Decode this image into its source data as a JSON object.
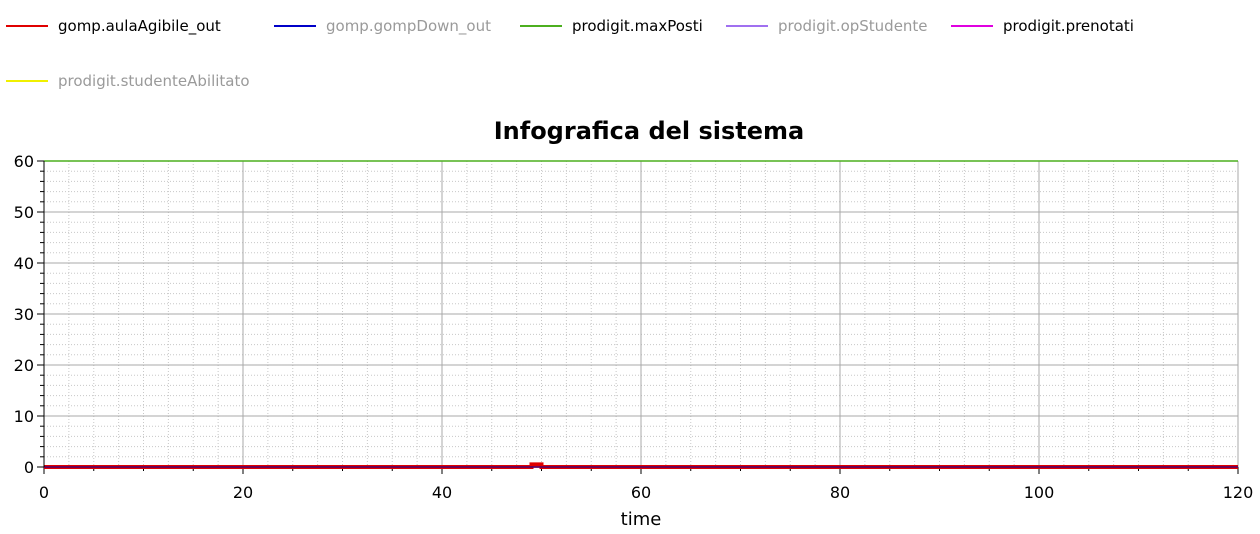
{
  "chart_data": {
    "type": "line",
    "title": "Infografica del sistema",
    "xlabel": "time",
    "ylabel": "",
    "xlim": [
      0,
      120
    ],
    "ylim": [
      0,
      60
    ],
    "x_ticks": [
      0,
      20,
      40,
      60,
      80,
      100,
      120
    ],
    "y_ticks": [
      0,
      10,
      20,
      30,
      40,
      50,
      60
    ],
    "grid": true,
    "legend_placement": "top",
    "series": [
      {
        "name": "gomp.aulaAgibile_out",
        "color": "#e00000",
        "visible": true,
        "points": [
          [
            0,
            0
          ],
          [
            49,
            0
          ],
          [
            49,
            0.5
          ],
          [
            50,
            0.5
          ],
          [
            50,
            0
          ],
          [
            120,
            0
          ]
        ]
      },
      {
        "name": "gomp.gompDown_out",
        "color": "#0000c8",
        "visible": false,
        "points": [
          [
            0,
            0
          ],
          [
            120,
            0
          ]
        ]
      },
      {
        "name": "prodigit.maxPosti",
        "color": "#4caf1f",
        "visible": true,
        "points": [
          [
            0,
            60
          ],
          [
            120,
            60
          ]
        ]
      },
      {
        "name": "prodigit.opStudente",
        "color": "#a070f0",
        "visible": false,
        "points": [
          [
            0,
            0
          ],
          [
            120,
            0
          ]
        ]
      },
      {
        "name": "prodigit.prenotati",
        "color": "#e000e0",
        "visible": true,
        "points": [
          [
            0,
            0
          ],
          [
            120,
            0
          ]
        ]
      },
      {
        "name": "prodigit.studenteAbilitato",
        "color": "#f0f000",
        "visible": false,
        "points": [
          [
            0,
            0
          ],
          [
            120,
            0
          ]
        ]
      }
    ]
  }
}
